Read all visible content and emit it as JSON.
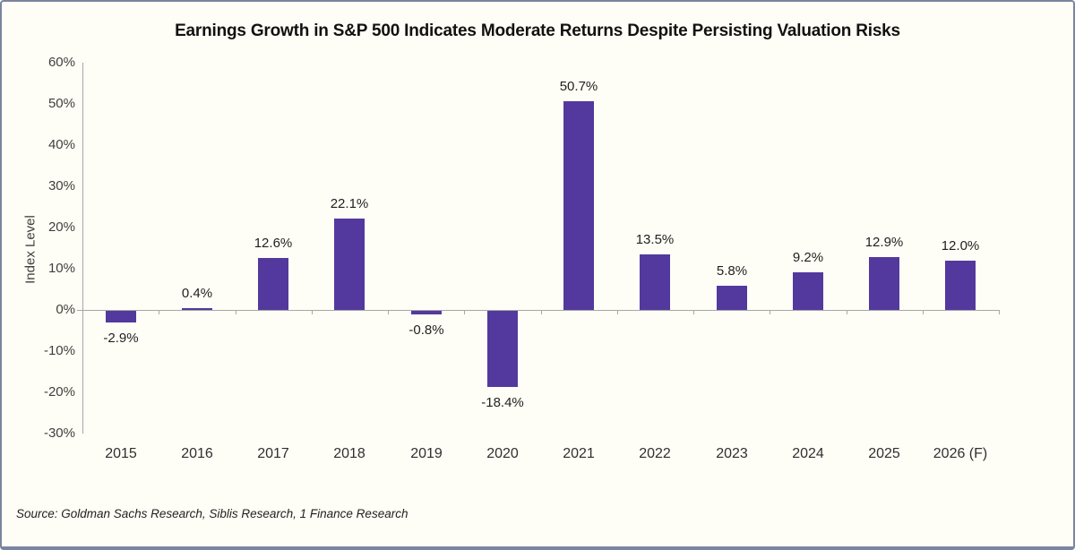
{
  "title": "Earnings Growth in S&P 500 Indicates Moderate Returns Despite Persisting Valuation Risks",
  "source": "Source: Goldman Sachs Research, Siblis Research, 1 Finance Research",
  "chart_data": {
    "type": "bar",
    "title": "Earnings Growth in S&P 500 Indicates Moderate Returns Despite Persisting Valuation Risks",
    "categories": [
      "2015",
      "2016",
      "2017",
      "2018",
      "2019",
      "2020",
      "2021",
      "2022",
      "2023",
      "2024",
      "2025",
      "2026 (F)"
    ],
    "values": [
      -2.9,
      0.4,
      12.6,
      22.1,
      -0.8,
      -18.4,
      50.7,
      13.5,
      5.8,
      9.2,
      12.9,
      12.0
    ],
    "data_labels": [
      "-2.9%",
      "0.4%",
      "12.6%",
      "22.1%",
      "-0.8%",
      "-18.4%",
      "50.7%",
      "13.5%",
      "5.8%",
      "9.2%",
      "12.9%",
      "12.0%"
    ],
    "xlabel": "",
    "ylabel": "Index Level",
    "ylim": [
      -30,
      60
    ],
    "ytick_values": [
      60,
      50,
      40,
      30,
      20,
      10,
      0,
      -10,
      -20,
      -30
    ],
    "ytick_labels": [
      "60%",
      "50%",
      "40%",
      "30%",
      "20%",
      "10%",
      "0%",
      "-10%",
      "-20%",
      "-30%"
    ],
    "grid": false,
    "legend_position": "none",
    "bar_color": "#53399E",
    "background_color": "#FFFEF6",
    "axis_color": "#A6A6A6"
  }
}
